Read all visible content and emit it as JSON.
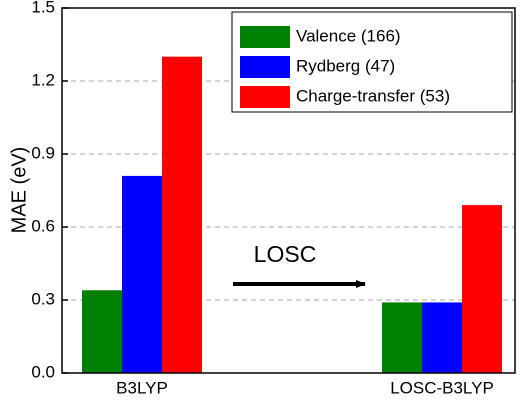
{
  "chart_data": {
    "type": "bar",
    "y_label": "MAE (eV)",
    "categories": [
      "B3LYP",
      "LOSC-B3LYP"
    ],
    "series": [
      {
        "name": "Valence (166)",
        "color": "#008000",
        "values": [
          0.34,
          0.29
        ]
      },
      {
        "name": "Rydberg (47)",
        "color": "#0000ff",
        "values": [
          0.81,
          0.29
        ]
      },
      {
        "name": "Charge-transfer (53)",
        "color": "#ff0000",
        "values": [
          1.3,
          0.69
        ]
      }
    ],
    "ylim": [
      0,
      1.5
    ],
    "yticks": [
      {
        "value": 0,
        "label": "0.0"
      },
      0.3,
      0.6,
      0.9,
      1.2,
      1.5
    ],
    "grid": true,
    "legend": "upper right",
    "annotation": "LOSC"
  }
}
